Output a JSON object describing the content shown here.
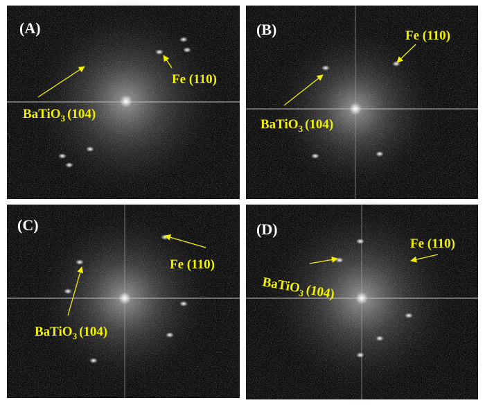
{
  "panels": [
    {
      "label": "(A)",
      "fe_label": "Fe (110)",
      "batio3_label": {
        "text": "BaTiO",
        "subscript": "3",
        "suffix": "(104)"
      }
    },
    {
      "label": "(B)",
      "fe_label": "Fe (110)",
      "batio3_label": {
        "text": "BaTiO",
        "subscript": "3",
        "suffix": "(104)"
      }
    },
    {
      "label": "(C)",
      "fe_label": "Fe (110)",
      "batio3_label": {
        "text": "BaTiO",
        "subscript": "3",
        "suffix": "(104)"
      }
    },
    {
      "label": "(D)",
      "fe_label": "Fe (110)",
      "batio3_label": {
        "text": "BaTiO",
        "subscript": "3",
        "suffix": "(104)"
      }
    }
  ]
}
